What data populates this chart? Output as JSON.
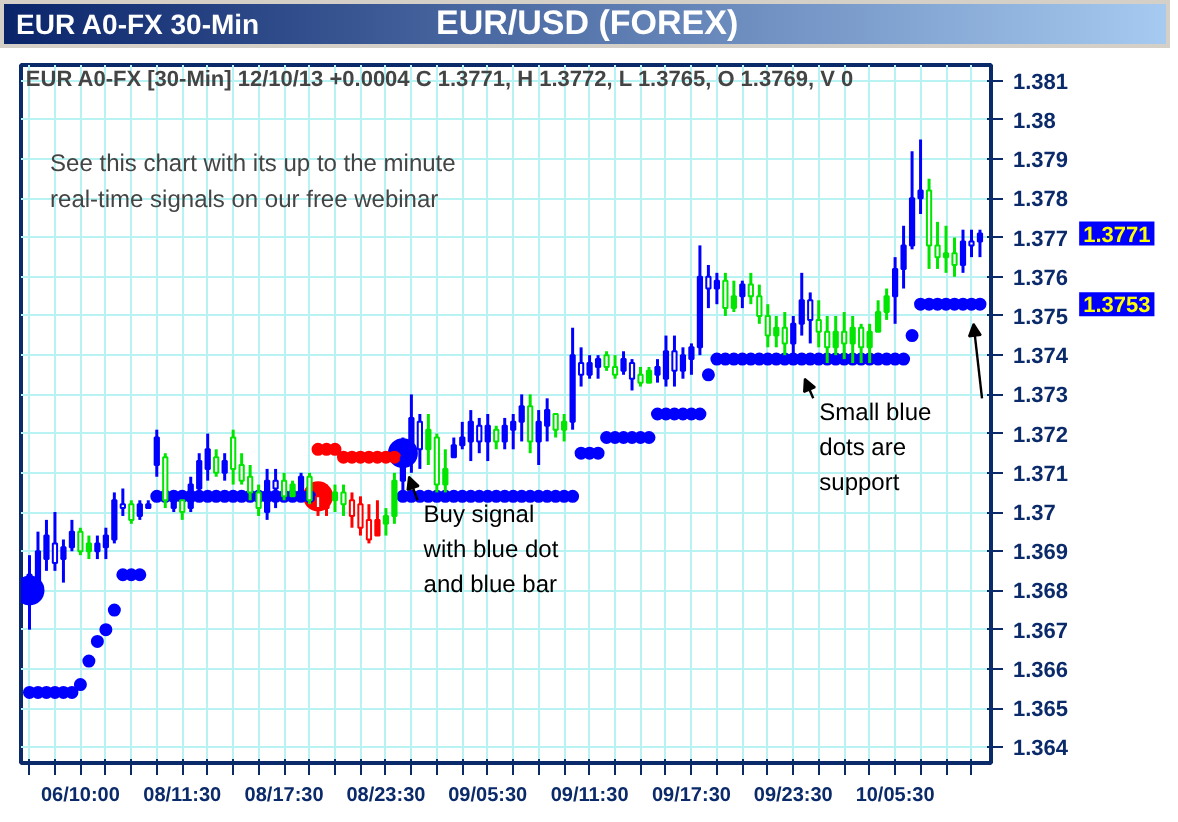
{
  "chart_data": {
    "type": "candlestick",
    "title": "EUR/USD (FOREX)",
    "subtitle": "EUR A0-FX 30-Min",
    "categories": [
      null,
      null,
      null,
      null,
      null,
      null,
      "06/10:00",
      null,
      null,
      null,
      null,
      null,
      null,
      null,
      null,
      null,
      null,
      null,
      "08/11:30",
      null,
      null,
      null,
      null,
      null,
      null,
      null,
      null,
      null,
      null,
      null,
      "08/17:30",
      null,
      null,
      null,
      null,
      null,
      null,
      null,
      null,
      null,
      null,
      null,
      "08/23:30",
      null,
      null,
      null,
      null,
      null,
      null,
      null,
      null,
      null,
      null,
      null,
      "09/05:30",
      null,
      null,
      null,
      null,
      null,
      null,
      null,
      null,
      null,
      null,
      null,
      "09/11:30",
      null,
      null,
      null,
      null,
      null,
      null,
      null,
      null,
      null,
      null,
      null,
      "09/17:30",
      null,
      null,
      null,
      null,
      null,
      null,
      null,
      null,
      null,
      null,
      null,
      "09/23:30",
      null,
      null,
      null,
      null,
      null,
      null,
      null,
      null,
      null,
      null,
      null,
      "10/05:30",
      null,
      null,
      null,
      null,
      null,
      null,
      null,
      null,
      null,
      null
    ],
    "ohlc": [
      [
        1.368,
        1.3689,
        1.367,
        1.3684
      ],
      [
        1.3682,
        1.3695,
        1.3679,
        1.369
      ],
      [
        1.3688,
        1.3698,
        1.3685,
        1.3694
      ],
      [
        1.3692,
        1.37,
        1.3685,
        1.3687
      ],
      [
        1.3688,
        1.3693,
        1.3682,
        1.3691
      ],
      [
        1.3691,
        1.3698,
        1.369,
        1.3695
      ],
      [
        1.3695,
        1.3696,
        1.3689,
        1.369
      ],
      [
        1.369,
        1.3694,
        1.3688,
        1.3692
      ],
      [
        1.369,
        1.3694,
        1.3688,
        1.3692
      ],
      [
        1.3691,
        1.3696,
        1.3688,
        1.3694
      ],
      [
        1.3693,
        1.3705,
        1.3692,
        1.3703
      ],
      [
        1.3702,
        1.3706,
        1.3699,
        1.3701
      ],
      [
        1.3702,
        1.3703,
        1.3697,
        1.3698
      ],
      [
        1.3699,
        1.3703,
        1.3698,
        1.3702
      ],
      [
        1.3701,
        1.3703,
        1.3701,
        1.3702
      ],
      [
        1.3712,
        1.3721,
        1.3709,
        1.3719
      ],
      [
        1.3714,
        1.3715,
        1.3701,
        1.3703
      ],
      [
        1.3701,
        1.3705,
        1.37,
        1.3704
      ],
      [
        1.3703,
        1.3703,
        1.3698,
        1.37
      ],
      [
        1.3701,
        1.3709,
        1.37,
        1.3707
      ],
      [
        1.3706,
        1.3715,
        1.3704,
        1.3713
      ],
      [
        1.3711,
        1.372,
        1.3708,
        1.3716
      ],
      [
        1.3714,
        1.3716,
        1.3709,
        1.371
      ],
      [
        1.371,
        1.3715,
        1.3708,
        1.3713
      ],
      [
        1.3719,
        1.3721,
        1.3707,
        1.3711
      ],
      [
        1.3712,
        1.3715,
        1.3707,
        1.3708
      ],
      [
        1.3709,
        1.3712,
        1.3703,
        1.3705
      ],
      [
        1.3705,
        1.3707,
        1.3699,
        1.3701
      ],
      [
        1.37,
        1.3711,
        1.3698,
        1.3708
      ],
      [
        1.3708,
        1.3711,
        1.3701,
        1.3706
      ],
      [
        1.3708,
        1.371,
        1.3703,
        1.3704
      ],
      [
        1.3704,
        1.3708,
        1.3704,
        1.3707
      ],
      [
        1.3705,
        1.371,
        1.3703,
        1.3709
      ],
      [
        1.3709,
        1.371,
        1.3702,
        1.3703
      ],
      [
        1.3704,
        1.3707,
        1.3699,
        1.3701
      ],
      [
        1.3701,
        1.3707,
        1.3699,
        1.3704
      ],
      [
        1.3703,
        1.3707,
        1.37,
        1.3705
      ],
      [
        1.3705,
        1.3707,
        1.3699,
        1.3702
      ],
      [
        1.3703,
        1.3705,
        1.3696,
        1.3699
      ],
      [
        1.3702,
        1.3704,
        1.3694,
        1.3696
      ],
      [
        1.3698,
        1.3702,
        1.3692,
        1.3693
      ],
      [
        1.3694,
        1.3703,
        1.3694,
        1.3698
      ],
      [
        1.3697,
        1.3701,
        1.3694,
        1.3699
      ],
      [
        1.3699,
        1.371,
        1.3697,
        1.3708
      ],
      [
        1.3708,
        1.3719,
        1.3704,
        1.3714
      ],
      [
        1.3714,
        1.373,
        1.371,
        1.3724
      ],
      [
        1.3723,
        1.3725,
        1.3711,
        1.3716
      ],
      [
        1.3716,
        1.3725,
        1.3712,
        1.3721
      ],
      [
        1.3719,
        1.372,
        1.3705,
        1.3707
      ],
      [
        1.3707,
        1.3716,
        1.3705,
        1.3711
      ],
      [
        1.3714,
        1.3719,
        1.3714,
        1.3717
      ],
      [
        1.3717,
        1.3723,
        1.3716,
        1.3719
      ],
      [
        1.3718,
        1.3726,
        1.3713,
        1.3723
      ],
      [
        1.3722,
        1.3724,
        1.3715,
        1.3718
      ],
      [
        1.3718,
        1.3725,
        1.3713,
        1.3722
      ],
      [
        1.3721,
        1.3722,
        1.3716,
        1.3718
      ],
      [
        1.3718,
        1.3724,
        1.3716,
        1.3722
      ],
      [
        1.3721,
        1.3725,
        1.3716,
        1.3723
      ],
      [
        1.3723,
        1.373,
        1.3718,
        1.3727
      ],
      [
        1.3727,
        1.373,
        1.3715,
        1.3718
      ],
      [
        1.3718,
        1.3726,
        1.3712,
        1.3723
      ],
      [
        1.3722,
        1.3729,
        1.3718,
        1.3726
      ],
      [
        1.3725,
        1.3725,
        1.3719,
        1.3721
      ],
      [
        1.3721,
        1.3725,
        1.3718,
        1.3723
      ],
      [
        1.3723,
        1.3747,
        1.3721,
        1.374
      ],
      [
        1.3738,
        1.3742,
        1.3732,
        1.3735
      ],
      [
        1.3735,
        1.374,
        1.3734,
        1.3738
      ],
      [
        1.3737,
        1.374,
        1.3734,
        1.3739
      ],
      [
        1.374,
        1.3741,
        1.3736,
        1.3737
      ],
      [
        1.3737,
        1.374,
        1.3734,
        1.3735
      ],
      [
        1.3736,
        1.3741,
        1.3735,
        1.3739
      ],
      [
        1.3738,
        1.3739,
        1.3731,
        1.3734
      ],
      [
        1.3735,
        1.3737,
        1.3732,
        1.3733
      ],
      [
        1.3733,
        1.3737,
        1.3733,
        1.3736
      ],
      [
        1.3735,
        1.3739,
        1.3733,
        1.3737
      ],
      [
        1.3734,
        1.3745,
        1.3732,
        1.3741
      ],
      [
        1.3741,
        1.3745,
        1.3732,
        1.3736
      ],
      [
        1.3736,
        1.3742,
        1.3734,
        1.374
      ],
      [
        1.3739,
        1.3743,
        1.3735,
        1.3742
      ],
      [
        1.3742,
        1.3768,
        1.374,
        1.376
      ],
      [
        1.376,
        1.3763,
        1.3752,
        1.3757
      ],
      [
        1.3757,
        1.3761,
        1.3753,
        1.3759
      ],
      [
        1.3759,
        1.3761,
        1.375,
        1.3752
      ],
      [
        1.3752,
        1.3759,
        1.3751,
        1.3755
      ],
      [
        1.3755,
        1.3759,
        1.3752,
        1.3758
      ],
      [
        1.3758,
        1.3761,
        1.3753,
        1.3755
      ],
      [
        1.3755,
        1.3758,
        1.3748,
        1.375
      ],
      [
        1.375,
        1.3753,
        1.3742,
        1.3745
      ],
      [
        1.3745,
        1.375,
        1.3742,
        1.3747
      ],
      [
        1.3747,
        1.3751,
        1.374,
        1.3743
      ],
      [
        1.3743,
        1.375,
        1.374,
        1.3748
      ],
      [
        1.3748,
        1.3761,
        1.3745,
        1.3754
      ],
      [
        1.3754,
        1.3756,
        1.3743,
        1.3749
      ],
      [
        1.3749,
        1.3754,
        1.3742,
        1.3746
      ],
      [
        1.3746,
        1.375,
        1.3738,
        1.3742
      ],
      [
        1.3742,
        1.375,
        1.374,
        1.3746
      ],
      [
        1.3746,
        1.3751,
        1.3739,
        1.3743
      ],
      [
        1.3743,
        1.375,
        1.3738,
        1.3747
      ],
      [
        1.3747,
        1.3748,
        1.3738,
        1.3742
      ],
      [
        1.3742,
        1.3748,
        1.3738,
        1.3746
      ],
      [
        1.3746,
        1.3754,
        1.3746,
        1.3751
      ],
      [
        1.3751,
        1.3757,
        1.3749,
        1.3755
      ],
      [
        1.3755,
        1.3765,
        1.3748,
        1.3762
      ],
      [
        1.3762,
        1.3773,
        1.3757,
        1.3768
      ],
      [
        1.3768,
        1.3792,
        1.3767,
        1.378
      ],
      [
        1.378,
        1.3795,
        1.3776,
        1.3782
      ],
      [
        1.3782,
        1.3785,
        1.3762,
        1.3768
      ],
      [
        1.3768,
        1.3774,
        1.3762,
        1.3765
      ],
      [
        1.3765,
        1.3773,
        1.3761,
        1.3766
      ],
      [
        1.3766,
        1.377,
        1.376,
        1.3763
      ],
      [
        1.3763,
        1.3772,
        1.3761,
        1.3769
      ],
      [
        1.3769,
        1.3772,
        1.3765,
        1.3768
      ],
      [
        1.3769,
        1.3772,
        1.3765,
        1.3771
      ]
    ],
    "colors": [
      "#0000ff",
      "#0000ff",
      "#0000ff",
      "#0000ff",
      "#0000ff",
      "#0000ff",
      "#00e600",
      "#00e600",
      "#0000ff",
      "#0000ff",
      "#0000ff",
      "#0000ff",
      "#00e600",
      "#0000ff",
      "#0000ff",
      "#0000ff",
      "#00e600",
      "#0000ff",
      "#00e600",
      "#0000ff",
      "#0000ff",
      "#0000ff",
      "#00e600",
      "#0000ff",
      "#00e600",
      "#00e600",
      "#00e600",
      "#00e600",
      "#0000ff",
      "#0000ff",
      "#00e600",
      "#00e600",
      "#0000ff",
      "#00e600",
      "#ff0000",
      "#ff0000",
      "#00e600",
      "#00e600",
      "#ff0000",
      "#ff0000",
      "#ff0000",
      "#ff0000",
      "#00e600",
      "#00e600",
      "#0000ff",
      "#0000ff",
      "#0000ff",
      "#00e600",
      "#00e600",
      "#00e600",
      "#0000ff",
      "#0000ff",
      "#0000ff",
      "#0000ff",
      "#0000ff",
      "#00e600",
      "#0000ff",
      "#0000ff",
      "#0000ff",
      "#00e600",
      "#0000ff",
      "#0000ff",
      "#00e600",
      "#00e600",
      "#0000ff",
      "#0000ff",
      "#0000ff",
      "#0000ff",
      "#00e600",
      "#00e600",
      "#0000ff",
      "#0000ff",
      "#00e600",
      "#00e600",
      "#0000ff",
      "#0000ff",
      "#0000ff",
      "#0000ff",
      "#0000ff",
      "#0000ff",
      "#0000ff",
      "#0000ff",
      "#00e600",
      "#00e600",
      "#0000ff",
      "#00e600",
      "#00e600",
      "#00e600",
      "#00e600",
      "#00e600",
      "#0000ff",
      "#0000ff",
      "#0000ff",
      "#00e600",
      "#00e600",
      "#00e600",
      "#00e600",
      "#00e600",
      "#00e600",
      "#00e600",
      "#00e600",
      "#00e600",
      "#0000ff",
      "#0000ff",
      "#0000ff",
      "#0000ff",
      "#00e600",
      "#00e600",
      "#00e600",
      "#00e600",
      "#0000ff",
      "#0000ff",
      "#0000ff"
    ],
    "series": [
      {
        "type": "scatter",
        "color": "#0000ff",
        "marker": "circle",
        "values": [
          1.3654,
          1.3654,
          1.3654,
          1.3654,
          1.3654,
          1.3654,
          1.3656,
          1.3662,
          1.3667,
          1.367,
          1.3675,
          1.3684,
          1.3684,
          1.3684,
          null,
          1.3704,
          1.3704,
          1.3704,
          1.3704,
          1.3704,
          1.3704,
          1.3704,
          1.3704,
          1.3704,
          1.3704,
          1.3704,
          1.3704,
          1.3704,
          1.3704,
          1.3704,
          1.3704,
          1.3704,
          1.3704,
          1.3704,
          null,
          null,
          null,
          null,
          null,
          null,
          null,
          null,
          null,
          null,
          1.3704,
          1.3704,
          1.3704,
          1.3704,
          1.3704,
          1.3704,
          1.3704,
          1.3704,
          1.3704,
          1.3704,
          1.3704,
          1.3704,
          1.3704,
          1.3704,
          1.3704,
          1.3704,
          1.3704,
          1.3704,
          1.3704,
          1.3704,
          1.3704,
          1.3715,
          1.3715,
          1.3715,
          1.3719,
          1.3719,
          1.3719,
          1.3719,
          1.3719,
          1.3719,
          1.3725,
          1.3725,
          1.3725,
          1.3725,
          1.3725,
          1.3725,
          1.3735,
          1.3739,
          1.3739,
          1.3739,
          1.3739,
          1.3739,
          1.3739,
          1.3739,
          1.3739,
          1.3739,
          1.3739,
          1.3739,
          1.3739,
          1.3739,
          1.3739,
          1.3739,
          1.3739,
          1.3739,
          1.3739,
          1.3739,
          1.3739,
          1.3739,
          1.3739,
          1.3739,
          1.3745,
          1.3753,
          1.3753,
          1.3753,
          1.3753,
          1.3753,
          1.3753,
          1.3753,
          1.3753
        ]
      },
      {
        "type": "scatter",
        "color": "#ff0000",
        "marker": "circle",
        "values": [
          null,
          null,
          null,
          null,
          null,
          null,
          null,
          null,
          null,
          null,
          null,
          null,
          null,
          null,
          null,
          null,
          null,
          null,
          null,
          null,
          null,
          null,
          null,
          null,
          null,
          null,
          null,
          null,
          null,
          null,
          null,
          null,
          null,
          null,
          1.3716,
          1.3716,
          1.3716,
          1.3714,
          1.3714,
          1.3714,
          1.3714,
          1.3714,
          1.3714,
          1.3714,
          null,
          null,
          null,
          null,
          null,
          null,
          null,
          null,
          null,
          null,
          null,
          null,
          null,
          null,
          null,
          null,
          null,
          null,
          null,
          null,
          null,
          null,
          null,
          null,
          null,
          null,
          null,
          null,
          null,
          null,
          null,
          null,
          null,
          null,
          null,
          null,
          null,
          null,
          null,
          null,
          null,
          null,
          null,
          null,
          null,
          null,
          null,
          null,
          null,
          null,
          null,
          null,
          null,
          null,
          null,
          null,
          null,
          null,
          null,
          null,
          null,
          null,
          null,
          null,
          null,
          null,
          null,
          null,
          null
        ]
      },
      {
        "type": "bubble",
        "values": [
          1.368,
          null,
          null,
          null,
          null,
          null,
          null,
          null,
          null,
          null,
          null,
          null,
          null,
          null,
          null,
          null,
          null,
          null,
          null,
          null,
          null,
          null,
          null,
          null,
          null,
          null,
          null,
          null,
          null,
          null,
          null,
          null,
          null,
          null,
          1.3704,
          null,
          null,
          null,
          null,
          null,
          null,
          null,
          null,
          null,
          1.3715,
          null,
          null,
          null,
          null,
          null,
          null,
          null,
          null,
          null,
          null,
          null,
          null,
          null,
          null,
          null,
          null,
          null,
          null,
          null,
          null,
          null,
          null,
          null,
          null,
          null,
          null,
          null,
          null,
          null,
          null,
          null,
          null,
          null,
          null,
          null,
          null,
          null,
          null,
          null,
          null,
          null,
          null,
          null,
          null,
          null,
          null,
          null,
          null,
          null,
          null,
          null,
          null,
          null,
          null,
          null,
          null,
          null,
          null,
          null,
          null,
          null,
          null,
          null,
          null,
          null,
          null,
          null,
          null
        ],
        "sizes": [
          1,
          null,
          null,
          null,
          null,
          null,
          null,
          null,
          null,
          null,
          null,
          null,
          null,
          null,
          null,
          null,
          null,
          null,
          null,
          null,
          null,
          null,
          null,
          null,
          null,
          null,
          null,
          null,
          null,
          null,
          null,
          null,
          null,
          null,
          1,
          null,
          null,
          null,
          null,
          null,
          null,
          null,
          null,
          null,
          1,
          null,
          null,
          null,
          null,
          null,
          null,
          null,
          null,
          null,
          null,
          null,
          null,
          null,
          null,
          null,
          null,
          null,
          null,
          null,
          null,
          null,
          null,
          null,
          null,
          null,
          null,
          null,
          null,
          null,
          null,
          null,
          null,
          null,
          null,
          null,
          null,
          null,
          null,
          null,
          null,
          null,
          null,
          null,
          null,
          null,
          null,
          null,
          null,
          null,
          null,
          null,
          null,
          null,
          null,
          null,
          null,
          null,
          null,
          null,
          null,
          null,
          null,
          null,
          null,
          null,
          null,
          null,
          null
        ],
        "colors": [
          "#0000ff",
          null,
          null,
          null,
          null,
          null,
          null,
          null,
          null,
          null,
          null,
          null,
          null,
          null,
          null,
          null,
          null,
          null,
          null,
          null,
          null,
          null,
          null,
          null,
          null,
          null,
          null,
          null,
          null,
          null,
          null,
          null,
          null,
          null,
          "#ff0000",
          null,
          null,
          null,
          null,
          null,
          null,
          null,
          null,
          null,
          "#0000ff",
          null,
          null,
          null,
          null,
          null,
          null,
          null,
          null,
          null,
          null,
          null,
          null,
          null,
          null,
          null,
          null,
          null,
          null,
          null,
          null,
          null,
          null,
          null,
          null,
          null,
          null,
          null,
          null,
          null,
          null,
          null,
          null,
          null,
          null,
          null,
          null,
          null,
          null,
          null,
          null,
          null,
          null,
          null,
          null,
          null,
          null,
          null,
          null,
          null,
          null,
          null,
          null,
          null,
          null,
          null,
          null,
          null,
          null,
          null,
          null,
          null,
          null,
          null,
          null,
          null,
          null,
          null,
          null
        ]
      }
    ],
    "ylim": [
      1.3636,
      1.3814
    ],
    "yticks": [
      1.364,
      1.365,
      1.366,
      1.367,
      1.368,
      1.369,
      1.37,
      1.371,
      1.372,
      1.373,
      1.374,
      1.375,
      1.376,
      1.377,
      1.378,
      1.379,
      1.38,
      1.381
    ],
    "grid": true,
    "annotations": [
      "EUR A0-FX [30-Min] 12/10/13  +0.0004 C 1.3771, H 1.3772, L 1.3765, O 1.3769, V 0",
      "See this chart with its up to the minute\nreal-time signals on our free webinar",
      {
        "text": "Buy signal\nwith blue dot\nand blue bar",
        "y": 1.3714
      },
      {
        "text": "Small blue\ndots are\nsupport",
        "y": 1.3739
      },
      "1.3771",
      "1.3753"
    ]
  }
}
